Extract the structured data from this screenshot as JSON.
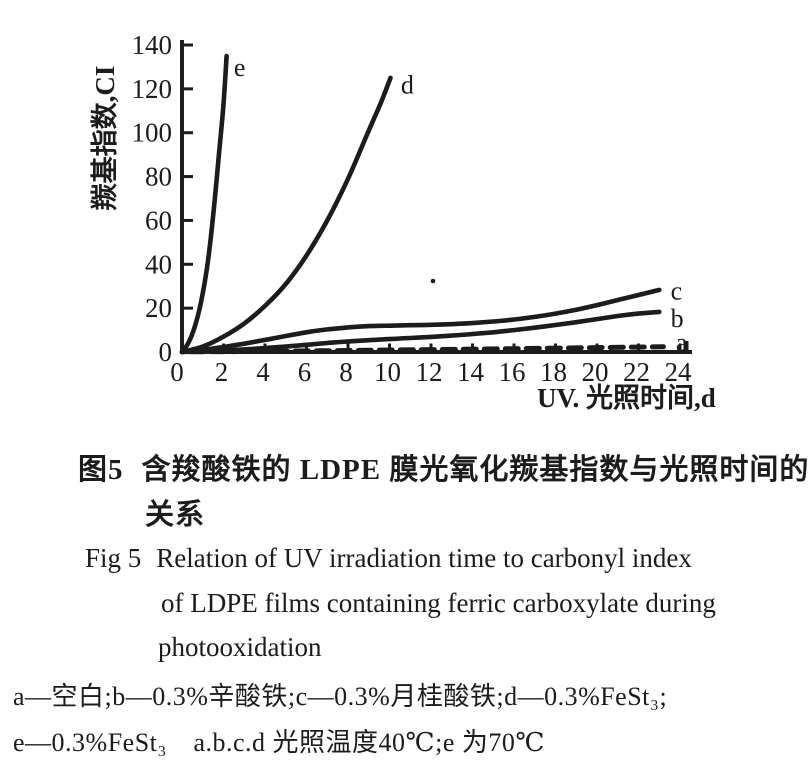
{
  "page": {
    "background": "#ffffff",
    "ink_color": "#1c1c1c"
  },
  "chart_data": {
    "type": "line",
    "title": "",
    "xlabel": "UV. 光照时间,d",
    "ylabel": "羰基指数,CI",
    "xlim": [
      0,
      24
    ],
    "ylim": [
      0,
      140
    ],
    "x_ticks": [
      0,
      2,
      4,
      6,
      8,
      10,
      12,
      14,
      16,
      18,
      20,
      22,
      24
    ],
    "y_ticks": [
      0,
      20,
      40,
      60,
      80,
      100,
      120,
      140
    ],
    "grid": false,
    "legend_position": "labels-at-curve-ends",
    "series": [
      {
        "name": "e",
        "line": "solid",
        "label_at": [
          2.5,
          130
        ],
        "points": [
          [
            0,
            0
          ],
          [
            0.3,
            4
          ],
          [
            0.6,
            11
          ],
          [
            0.9,
            22
          ],
          [
            1.2,
            38
          ],
          [
            1.5,
            62
          ],
          [
            1.8,
            92
          ],
          [
            2.0,
            113
          ],
          [
            2.15,
            135
          ]
        ]
      },
      {
        "name": "d",
        "line": "solid",
        "label_at": [
          10.55,
          122
        ],
        "points": [
          [
            0,
            0
          ],
          [
            1,
            2.5
          ],
          [
            2,
            7
          ],
          [
            3,
            13
          ],
          [
            4,
            21
          ],
          [
            5,
            31
          ],
          [
            6,
            44
          ],
          [
            7,
            60
          ],
          [
            8,
            79
          ],
          [
            9,
            101
          ],
          [
            9.6,
            114
          ],
          [
            10.05,
            125
          ]
        ]
      },
      {
        "name": "c",
        "line": "solid",
        "label_at": [
          23.55,
          28
        ],
        "points": [
          [
            0,
            0
          ],
          [
            1,
            1
          ],
          [
            2,
            2.3
          ],
          [
            3,
            3.8
          ],
          [
            4,
            5.5
          ],
          [
            5,
            7.3
          ],
          [
            6,
            9
          ],
          [
            7,
            10.3
          ],
          [
            8,
            11.2
          ],
          [
            9,
            11.8
          ],
          [
            10,
            12
          ],
          [
            11,
            12.2
          ],
          [
            12,
            12.4
          ],
          [
            13,
            12.7
          ],
          [
            14,
            13.2
          ],
          [
            15,
            13.9
          ],
          [
            16,
            14.8
          ],
          [
            17,
            16
          ],
          [
            18,
            17.5
          ],
          [
            19,
            19.3
          ],
          [
            20,
            21.4
          ],
          [
            21,
            23.7
          ],
          [
            22,
            26
          ],
          [
            23,
            28.3
          ]
        ]
      },
      {
        "name": "b",
        "line": "solid",
        "label_at": [
          23.55,
          15.5
        ],
        "points": [
          [
            0,
            0
          ],
          [
            1,
            0.3
          ],
          [
            2,
            0.7
          ],
          [
            3,
            1.2
          ],
          [
            4,
            1.8
          ],
          [
            5,
            2.5
          ],
          [
            6,
            3.3
          ],
          [
            7,
            4.1
          ],
          [
            8,
            4.8
          ],
          [
            9,
            5.4
          ],
          [
            10,
            5.9
          ],
          [
            11,
            6.4
          ],
          [
            12,
            6.9
          ],
          [
            13,
            7.5
          ],
          [
            14,
            8.2
          ],
          [
            15,
            9
          ],
          [
            16,
            10
          ],
          [
            17,
            11.1
          ],
          [
            18,
            12.3
          ],
          [
            19,
            13.6
          ],
          [
            20,
            15
          ],
          [
            21,
            16.4
          ],
          [
            22,
            17.5
          ],
          [
            23,
            18.3
          ]
        ]
      },
      {
        "name": "a",
        "line": "dashed",
        "label_at": [
          23.8,
          4.5
        ],
        "points": [
          [
            0.4,
            0.1
          ],
          [
            4,
            0.3
          ],
          [
            8,
            0.7
          ],
          [
            12,
            1.1
          ],
          [
            16,
            1.5
          ],
          [
            20,
            2.0
          ],
          [
            23.2,
            2.4
          ]
        ]
      }
    ]
  },
  "caption": {
    "zh_label": "图5",
    "zh_line1": "含羧酸铁的 LDPE 膜光氧化羰基指数与光照时间的",
    "zh_line2": "关系",
    "en_label": "Fig 5",
    "en_line1": "Relation of UV irradiation time to carbonyl index",
    "en_line2": "of LDPE films containing ferric carboxylate during",
    "en_line3": "photooxidation"
  },
  "notes": {
    "line1": "a—空白;b—0.3%辛酸铁;c—0.3%月桂酸铁;d—0.3%FeSt₃;",
    "line2": "e—0.3%FeSt₃　a.b.c.d 光照温度40℃;e 为70℃"
  }
}
